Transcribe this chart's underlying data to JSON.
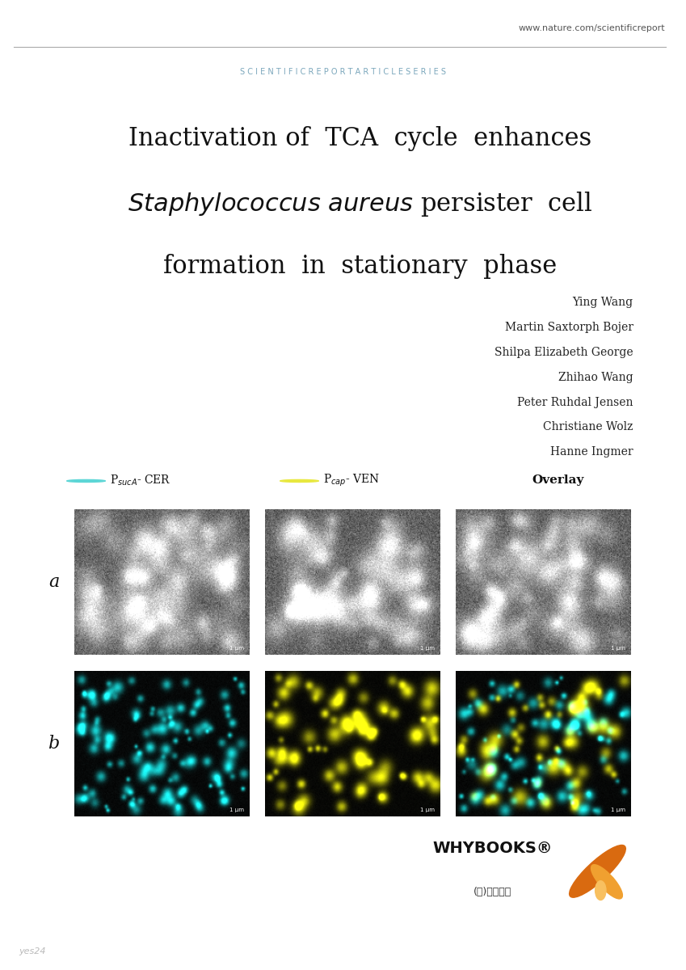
{
  "bg_color": "#ffffff",
  "header_url": "www.nature.com/scientificreport",
  "header_series": "S C I E N T I F I C R E P O R T A R T I C L E S E R I E S",
  "header_color": "#7ba7bc",
  "title_line1": "Inactivation of  TCA  cycle  enhances",
  "title_line2": "$\\it{Staphylococcus\\ aureus}$ persister  cell",
  "title_line3": "formation  in  stationary  phase",
  "title_fontsize": 22,
  "authors": [
    "Ying Wang",
    "Martin Saxtorph Bojer",
    "Shilpa Elizabeth George",
    "Zhihao Wang",
    "Peter Ruhdal Jensen",
    "Christiane Wolz",
    "Hanne Ingmer"
  ],
  "label_a": "a",
  "label_b": "b",
  "cyan_color": "#5dd6d6",
  "yellow_color": "#e8e840",
  "whybooks_text": "WHYBOOKS®",
  "whybooks_sub": "(주)와이북스",
  "footer_text": "yes24"
}
